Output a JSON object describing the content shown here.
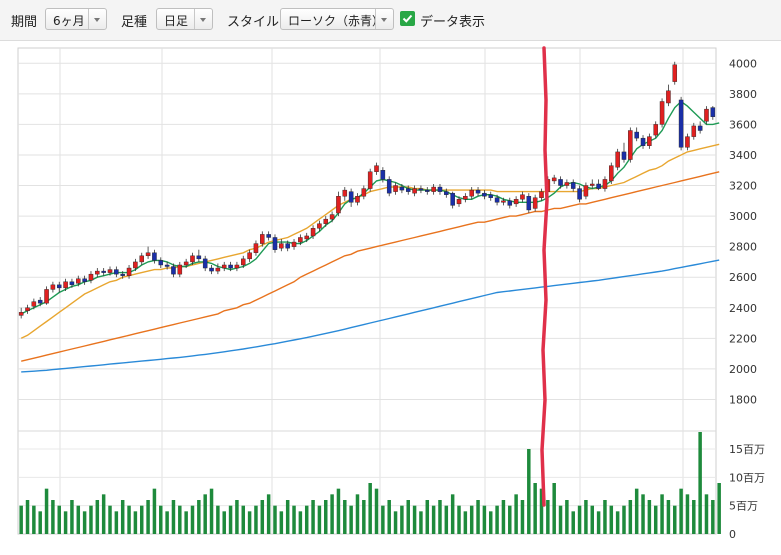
{
  "toolbar": {
    "period_label": "期間",
    "period_value": "6ヶ月",
    "interval_label": "足種",
    "interval_value": "日足",
    "style_label": "スタイル",
    "style_value": "ローソク（赤青）",
    "data_display_label": "データ表示",
    "data_display_checked": true
  },
  "chart_data": {
    "type": "candlestick",
    "price_axis": {
      "ticks": [
        1800,
        2000,
        2200,
        2400,
        2600,
        2800,
        3000,
        3200,
        3400,
        3600,
        3800,
        4000
      ],
      "range": [
        1600,
        4100
      ]
    },
    "volume_axis": {
      "ticks": [
        "0",
        "5百万",
        "10百万",
        "15百万"
      ],
      "range_millions": [
        0,
        18
      ]
    },
    "candles": [
      [
        2350,
        2370,
        2330,
        2400
      ],
      [
        2380,
        2400,
        2360,
        2420
      ],
      [
        2410,
        2440,
        2390,
        2460
      ],
      [
        2450,
        2430,
        2410,
        2470
      ],
      [
        2430,
        2520,
        2420,
        2540
      ],
      [
        2520,
        2550,
        2500,
        2570
      ],
      [
        2550,
        2530,
        2500,
        2570
      ],
      [
        2530,
        2570,
        2510,
        2590
      ],
      [
        2570,
        2550,
        2530,
        2590
      ],
      [
        2560,
        2590,
        2540,
        2610
      ],
      [
        2590,
        2570,
        2550,
        2610
      ],
      [
        2580,
        2620,
        2560,
        2640
      ],
      [
        2620,
        2640,
        2600,
        2660
      ],
      [
        2640,
        2630,
        2610,
        2660
      ],
      [
        2630,
        2650,
        2610,
        2670
      ],
      [
        2650,
        2620,
        2600,
        2670
      ],
      [
        2620,
        2610,
        2590,
        2640
      ],
      [
        2610,
        2660,
        2590,
        2680
      ],
      [
        2660,
        2700,
        2640,
        2720
      ],
      [
        2700,
        2740,
        2680,
        2760
      ],
      [
        2740,
        2760,
        2720,
        2800
      ],
      [
        2760,
        2710,
        2690,
        2780
      ],
      [
        2710,
        2680,
        2660,
        2730
      ],
      [
        2680,
        2670,
        2650,
        2700
      ],
      [
        2670,
        2620,
        2600,
        2690
      ],
      [
        2620,
        2680,
        2600,
        2700
      ],
      [
        2680,
        2700,
        2660,
        2720
      ],
      [
        2700,
        2740,
        2680,
        2760
      ],
      [
        2740,
        2720,
        2700,
        2780
      ],
      [
        2720,
        2660,
        2640,
        2740
      ],
      [
        2660,
        2640,
        2620,
        2680
      ],
      [
        2640,
        2660,
        2620,
        2690
      ],
      [
        2660,
        2680,
        2640,
        2700
      ],
      [
        2680,
        2660,
        2640,
        2700
      ],
      [
        2660,
        2680,
        2640,
        2700
      ],
      [
        2680,
        2720,
        2660,
        2740
      ],
      [
        2720,
        2760,
        2700,
        2780
      ],
      [
        2760,
        2820,
        2740,
        2840
      ],
      [
        2820,
        2880,
        2800,
        2900
      ],
      [
        2880,
        2860,
        2840,
        2900
      ],
      [
        2860,
        2780,
        2760,
        2880
      ],
      [
        2790,
        2820,
        2770,
        2850
      ],
      [
        2820,
        2790,
        2770,
        2840
      ],
      [
        2800,
        2830,
        2780,
        2850
      ],
      [
        2830,
        2860,
        2810,
        2880
      ],
      [
        2850,
        2870,
        2830,
        2890
      ],
      [
        2870,
        2920,
        2850,
        2940
      ],
      [
        2920,
        2950,
        2900,
        2970
      ],
      [
        2950,
        2980,
        2930,
        3000
      ],
      [
        2980,
        3010,
        2960,
        3030
      ],
      [
        3020,
        3130,
        3000,
        3160
      ],
      [
        3130,
        3170,
        3100,
        3190
      ],
      [
        3160,
        3090,
        3060,
        3180
      ],
      [
        3090,
        3130,
        3070,
        3150
      ],
      [
        3130,
        3180,
        3110,
        3200
      ],
      [
        3180,
        3290,
        3160,
        3310
      ],
      [
        3290,
        3330,
        3270,
        3350
      ],
      [
        3300,
        3240,
        3220,
        3320
      ],
      [
        3240,
        3150,
        3130,
        3260
      ],
      [
        3160,
        3200,
        3140,
        3220
      ],
      [
        3190,
        3170,
        3150,
        3210
      ],
      [
        3180,
        3160,
        3140,
        3200
      ],
      [
        3150,
        3180,
        3130,
        3200
      ],
      [
        3180,
        3170,
        3150,
        3200
      ],
      [
        3170,
        3160,
        3140,
        3190
      ],
      [
        3160,
        3190,
        3140,
        3210
      ],
      [
        3190,
        3160,
        3140,
        3210
      ],
      [
        3160,
        3140,
        3120,
        3180
      ],
      [
        3150,
        3070,
        3050,
        3160
      ],
      [
        3080,
        3110,
        3060,
        3130
      ],
      [
        3110,
        3130,
        3090,
        3150
      ],
      [
        3130,
        3170,
        3110,
        3190
      ],
      [
        3170,
        3150,
        3130,
        3190
      ],
      [
        3150,
        3130,
        3110,
        3170
      ],
      [
        3140,
        3120,
        3100,
        3160
      ],
      [
        3120,
        3090,
        3070,
        3140
      ],
      [
        3090,
        3100,
        3070,
        3120
      ],
      [
        3100,
        3070,
        3050,
        3120
      ],
      [
        3080,
        3110,
        3060,
        3130
      ],
      [
        3110,
        3140,
        3090,
        3160
      ],
      [
        3130,
        3040,
        3020,
        3150
      ],
      [
        3050,
        3120,
        3030,
        3140
      ],
      [
        3120,
        3160,
        3100,
        3180
      ],
      [
        3160,
        3240,
        3140,
        3260
      ],
      [
        3230,
        3250,
        3210,
        3270
      ],
      [
        3240,
        3200,
        3180,
        3260
      ],
      [
        3200,
        3220,
        3180,
        3240
      ],
      [
        3220,
        3180,
        3160,
        3240
      ],
      [
        3180,
        3110,
        3090,
        3200
      ],
      [
        3130,
        3200,
        3110,
        3220
      ],
      [
        3200,
        3210,
        3180,
        3240
      ],
      [
        3210,
        3180,
        3170,
        3240
      ],
      [
        3180,
        3240,
        3160,
        3260
      ],
      [
        3230,
        3330,
        3210,
        3350
      ],
      [
        3320,
        3420,
        3300,
        3440
      ],
      [
        3420,
        3370,
        3350,
        3480
      ],
      [
        3370,
        3560,
        3350,
        3580
      ],
      [
        3550,
        3510,
        3490,
        3580
      ],
      [
        3510,
        3460,
        3440,
        3530
      ],
      [
        3460,
        3520,
        3440,
        3540
      ],
      [
        3530,
        3600,
        3510,
        3620
      ],
      [
        3600,
        3750,
        3580,
        3770
      ],
      [
        3740,
        3820,
        3720,
        3860
      ],
      [
        3880,
        3990,
        3860,
        4010
      ],
      [
        3760,
        3450,
        3430,
        3780
      ],
      [
        3450,
        3520,
        3430,
        3540
      ],
      [
        3520,
        3590,
        3500,
        3610
      ],
      [
        3590,
        3560,
        3540,
        3620
      ],
      [
        3620,
        3700,
        3600,
        3720
      ],
      [
        3710,
        3650,
        3630,
        3720
      ]
    ],
    "ma5": [
      2360,
      2380,
      2400,
      2420,
      2440,
      2470,
      2500,
      2520,
      2540,
      2550,
      2570,
      2580,
      2600,
      2610,
      2620,
      2630,
      2630,
      2630,
      2650,
      2680,
      2700,
      2710,
      2710,
      2700,
      2680,
      2670,
      2670,
      2690,
      2700,
      2700,
      2690,
      2670,
      2660,
      2650,
      2660,
      2670,
      2690,
      2720,
      2770,
      2820,
      2830,
      2830,
      2830,
      2820,
      2820,
      2840,
      2870,
      2900,
      2940,
      2970,
      3020,
      3080,
      3110,
      3120,
      3150,
      3190,
      3230,
      3240,
      3230,
      3220,
      3200,
      3180,
      3170,
      3170,
      3170,
      3170,
      3170,
      3160,
      3140,
      3120,
      3110,
      3110,
      3130,
      3140,
      3140,
      3130,
      3110,
      3100,
      3090,
      3090,
      3090,
      3090,
      3100,
      3120,
      3150,
      3190,
      3210,
      3220,
      3210,
      3190,
      3180,
      3190,
      3200,
      3230,
      3280,
      3320,
      3380,
      3440,
      3470,
      3490,
      3510,
      3560,
      3640,
      3710,
      3750,
      3720,
      3680,
      3640,
      3600,
      3600,
      3610
    ],
    "ma25": [
      2200,
      2220,
      2250,
      2280,
      2310,
      2340,
      2370,
      2400,
      2430,
      2460,
      2490,
      2510,
      2530,
      2550,
      2570,
      2580,
      2600,
      2610,
      2620,
      2630,
      2640,
      2650,
      2650,
      2660,
      2660,
      2670,
      2670,
      2680,
      2690,
      2700,
      2710,
      2720,
      2730,
      2740,
      2750,
      2760,
      2780,
      2790,
      2810,
      2830,
      2840,
      2850,
      2860,
      2880,
      2900,
      2920,
      2950,
      2980,
      3010,
      3040,
      3070,
      3090,
      3110,
      3120,
      3140,
      3160,
      3170,
      3180,
      3190,
      3190,
      3190,
      3190,
      3180,
      3180,
      3170,
      3170,
      3170,
      3170,
      3170,
      3170,
      3170,
      3170,
      3170,
      3170,
      3170,
      3160,
      3160,
      3160,
      3160,
      3160,
      3160,
      3160,
      3160,
      3160,
      3160,
      3160,
      3160,
      3160,
      3160,
      3170,
      3180,
      3180,
      3190,
      3200,
      3210,
      3220,
      3240,
      3260,
      3280,
      3300,
      3310,
      3330,
      3360,
      3380,
      3400,
      3420,
      3430,
      3440,
      3450,
      3460,
      3470
    ],
    "ma75": [
      2050,
      2060,
      2070,
      2080,
      2090,
      2100,
      2110,
      2120,
      2130,
      2140,
      2150,
      2160,
      2170,
      2180,
      2190,
      2200,
      2210,
      2220,
      2230,
      2240,
      2250,
      2260,
      2270,
      2280,
      2290,
      2300,
      2310,
      2320,
      2330,
      2340,
      2350,
      2360,
      2380,
      2390,
      2400,
      2420,
      2430,
      2450,
      2470,
      2490,
      2510,
      2530,
      2550,
      2570,
      2600,
      2620,
      2640,
      2660,
      2680,
      2700,
      2720,
      2740,
      2750,
      2770,
      2780,
      2790,
      2800,
      2810,
      2820,
      2830,
      2840,
      2850,
      2860,
      2870,
      2880,
      2890,
      2900,
      2910,
      2920,
      2930,
      2940,
      2950,
      2960,
      2960,
      2970,
      2980,
      2990,
      3000,
      3000,
      3010,
      3020,
      3030,
      3030,
      3040,
      3050,
      3050,
      3060,
      3070,
      3080,
      3080,
      3090,
      3100,
      3110,
      3120,
      3130,
      3140,
      3150,
      3160,
      3170,
      3180,
      3190,
      3200,
      3210,
      3220,
      3230,
      3240,
      3250,
      3260,
      3270,
      3280,
      3290
    ],
    "ma200": [
      1980,
      1982,
      1985,
      1988,
      1991,
      1995,
      1999,
      2003,
      2007,
      2011,
      2015,
      2019,
      2023,
      2027,
      2031,
      2035,
      2039,
      2043,
      2047,
      2051,
      2055,
      2059,
      2063,
      2067,
      2071,
      2075,
      2080,
      2085,
      2090,
      2095,
      2100,
      2106,
      2112,
      2118,
      2124,
      2130,
      2137,
      2144,
      2151,
      2158,
      2165,
      2173,
      2181,
      2189,
      2197,
      2205,
      2214,
      2223,
      2232,
      2241,
      2250,
      2260,
      2270,
      2280,
      2290,
      2300,
      2310,
      2320,
      2330,
      2340,
      2350,
      2360,
      2370,
      2380,
      2390,
      2400,
      2410,
      2420,
      2430,
      2440,
      2450,
      2460,
      2470,
      2480,
      2490,
      2500,
      2505,
      2510,
      2515,
      2520,
      2525,
      2530,
      2535,
      2540,
      2545,
      2550,
      2555,
      2560,
      2565,
      2570,
      2575,
      2580,
      2586,
      2592,
      2598,
      2604,
      2610,
      2616,
      2622,
      2628,
      2634,
      2640,
      2648,
      2656,
      2664,
      2672,
      2680,
      2688,
      2696,
      2704,
      2712
    ],
    "volume_millions": [
      5,
      6,
      5,
      4,
      8,
      6,
      5,
      4,
      6,
      5,
      4,
      5,
      6,
      7,
      5,
      4,
      6,
      5,
      4,
      5,
      6,
      8,
      5,
      4,
      6,
      5,
      4,
      5,
      6,
      7,
      8,
      5,
      4,
      5,
      6,
      5,
      4,
      5,
      6,
      7,
      5,
      4,
      6,
      5,
      4,
      5,
      6,
      5,
      6,
      7,
      8,
      6,
      5,
      7,
      6,
      9,
      8,
      5,
      6,
      4,
      5,
      6,
      5,
      4,
      6,
      5,
      6,
      5,
      7,
      5,
      4,
      5,
      6,
      5,
      4,
      5,
      6,
      5,
      7,
      6,
      15,
      9,
      8,
      6,
      9,
      5,
      6,
      4,
      5,
      6,
      5,
      4,
      6,
      5,
      4,
      5,
      6,
      8,
      7,
      6,
      5,
      7,
      6,
      5,
      8,
      7,
      6,
      18,
      7,
      6,
      9
    ],
    "colors": {
      "up": "#e02020",
      "down": "#1a2fa8",
      "ma5": "#1e9a55",
      "ma25": "#e8a630",
      "ma75": "#e8731e",
      "ma200": "#2a8ad8",
      "volume": "#1e8a3c",
      "marker": "#e0304a"
    }
  }
}
